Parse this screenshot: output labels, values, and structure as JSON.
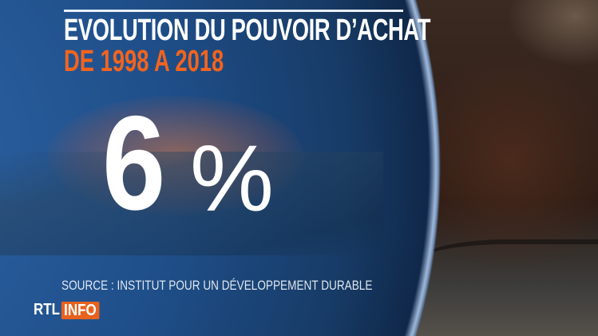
{
  "graphic": {
    "title": "EVOLUTION DU POUVOIR D’ACHAT",
    "subtitle": "DE 1998 A 2018",
    "value": "6",
    "unit": "%",
    "source": "SOURCE : INSTITUT POUR UN DÉVELOPPEMENT DURABLE"
  },
  "logo": {
    "part1": "RTL",
    "part2": "INFO"
  },
  "colors": {
    "accent": "#f2641e",
    "globe": "#1f4f8a",
    "logo_box": "#e8621e"
  }
}
